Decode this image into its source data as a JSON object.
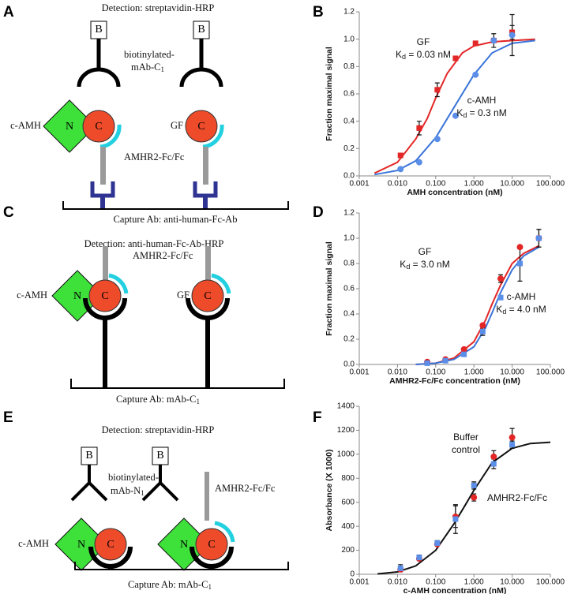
{
  "panel_labels": [
    "A",
    "B",
    "C",
    "D",
    "E",
    "F"
  ],
  "diagrams": [
    {
      "title": "Detection: streptavidin-HRP",
      "tags": [
        "B",
        "B"
      ],
      "detection_ab": [
        "biotinylated-",
        "mAb-C",
        "1"
      ],
      "ligands": [
        {
          "label": "c-AMH",
          "domains": [
            "N",
            "C"
          ]
        },
        {
          "label": "GF",
          "domains": [
            "C"
          ]
        }
      ],
      "receptor": "AMHR2-Fc/Fc",
      "capture": [
        "Capture Ab: anti-human-Fc-Ab"
      ]
    },
    {
      "title": "Detection: anti-human-Fc-Ab-HRP",
      "ligands": [
        {
          "label": "c-AMH",
          "domains": [
            "N",
            "C"
          ]
        },
        {
          "label": "GF",
          "domains": [
            "C"
          ]
        }
      ],
      "receptor": "AMHR2-Fc/Fc",
      "capture": [
        "Capture Ab: mAb-C",
        "1"
      ]
    },
    {
      "title": "Detection: streptavidin-HRP",
      "tags": [
        "B",
        "B"
      ],
      "detection_ab": [
        "biotinylated-",
        "mAb-N",
        "1"
      ],
      "ligands": [
        {
          "label": "c-AMH",
          "domains": [
            "N",
            "C"
          ]
        },
        {
          "domains": [
            "N",
            "C"
          ]
        }
      ],
      "receptor": "AMHR2-Fc/Fc",
      "capture": [
        "Capture Ab: mAb-C",
        "1"
      ]
    }
  ],
  "chart_data": [
    {
      "type": "scatter",
      "xlabel": "AMH concentration (nM)",
      "ylabel": "Fraction maximal signal",
      "xscale": "log",
      "xlim": [
        0.001,
        100
      ],
      "xticks": [
        {
          "value": 0.001,
          "label": "0.001"
        },
        {
          "value": 0.01,
          "label": "0.010"
        },
        {
          "value": 0.1,
          "label": "0.100"
        },
        {
          "value": 1,
          "label": "1.000"
        },
        {
          "value": 10,
          "label": "10.000"
        },
        {
          "value": 100,
          "label": "100.000"
        }
      ],
      "ylim": [
        0,
        1.2
      ],
      "yticks": [
        {
          "value": 0,
          "label": "0.0"
        },
        0.2,
        0.4,
        0.6,
        0.8,
        {
          "value": 1,
          "label": "1.0"
        },
        1.2
      ],
      "fits": [
        {
          "color": "#e32626",
          "x": [
            0.0025,
            0.01,
            0.03,
            0.06,
            0.1,
            0.2,
            0.5,
            1,
            3,
            10,
            40
          ],
          "values": [
            0.02,
            0.1,
            0.27,
            0.42,
            0.57,
            0.75,
            0.9,
            0.95,
            0.98,
            0.99,
            1.0
          ]
        },
        {
          "color": "#3a74d8",
          "x": [
            0.0025,
            0.01,
            0.03,
            0.1,
            0.3,
            1,
            3,
            10,
            40
          ],
          "values": [
            0.01,
            0.04,
            0.11,
            0.28,
            0.5,
            0.74,
            0.9,
            0.97,
            0.99
          ]
        }
      ],
      "series": [
        {
          "color": "#e32626",
          "marker": "square",
          "x": [
            0.012,
            0.037,
            0.11,
            0.33,
            1.1,
            3.3,
            10
          ],
          "values": [
            0.15,
            0.35,
            0.63,
            0.86,
            0.97,
            0.99,
            1.05
          ],
          "errors": [
            null,
            0.05,
            0.05,
            null,
            null,
            null,
            0.05
          ]
        },
        {
          "color": "#5a8ee8",
          "marker": "circle",
          "x": [
            0.012,
            0.037,
            0.11,
            0.33,
            1.1,
            3.3,
            10
          ],
          "values": [
            0.05,
            0.1,
            0.27,
            0.44,
            0.74,
            0.99,
            1.03
          ],
          "errors": [
            null,
            null,
            null,
            null,
            null,
            0.05,
            0.15
          ]
        }
      ],
      "annotations": [
        {
          "lines": [
            "GF"
          ],
          "kd": [
            "K",
            "d",
            " = 0.03 nM"
          ]
        },
        {
          "lines": [
            "c-AMH"
          ],
          "kd": [
            "K",
            "d",
            " = 0.3 nM"
          ]
        }
      ]
    },
    {
      "type": "scatter",
      "xlabel": "AMHR2-Fc/Fc concentration (nM)",
      "ylabel": "Fraction maximal signal",
      "xscale": "log",
      "xlim": [
        0.001,
        100
      ],
      "xticks": [
        {
          "value": 0.001,
          "label": "0.001"
        },
        {
          "value": 0.01,
          "label": "0.010"
        },
        {
          "value": 0.1,
          "label": "0.100"
        },
        {
          "value": 1,
          "label": "1.000"
        },
        {
          "value": 10,
          "label": "10.000"
        },
        {
          "value": 100,
          "label": "100.000"
        }
      ],
      "ylim": [
        0,
        1.2
      ],
      "yticks": [
        {
          "value": 0,
          "label": "0.0"
        },
        0.2,
        0.4,
        0.6,
        0.8,
        {
          "value": 1,
          "label": "1.0"
        },
        1.2
      ],
      "fits": [
        {
          "color": "#e32626",
          "x": [
            0.03,
            0.1,
            0.3,
            1,
            2,
            3,
            5,
            10,
            20,
            50
          ],
          "values": [
            0.0,
            0.01,
            0.05,
            0.18,
            0.35,
            0.48,
            0.63,
            0.8,
            0.88,
            0.94
          ]
        },
        {
          "color": "#3a74d8",
          "x": [
            0.03,
            0.1,
            0.3,
            1,
            2,
            3,
            5,
            10,
            20,
            50
          ],
          "values": [
            0.0,
            0.01,
            0.04,
            0.14,
            0.29,
            0.41,
            0.57,
            0.75,
            0.86,
            0.93
          ]
        }
      ],
      "series": [
        {
          "color": "#e32626",
          "marker": "circle",
          "x": [
            0.06,
            0.18,
            0.55,
            1.7,
            5,
            16,
            50
          ],
          "values": [
            0.02,
            0.04,
            0.12,
            0.31,
            0.68,
            0.93,
            1.0
          ],
          "errors": [
            null,
            null,
            null,
            null,
            0.03,
            null,
            0.07
          ]
        },
        {
          "color": "#5a8ee8",
          "marker": "square",
          "x": [
            0.06,
            0.18,
            0.55,
            1.7,
            5,
            16,
            50
          ],
          "values": [
            0.01,
            0.03,
            0.08,
            0.26,
            0.53,
            0.8,
            1.0
          ],
          "errors": [
            null,
            null,
            null,
            0.03,
            null,
            0.14,
            0.07
          ]
        }
      ],
      "annotations": [
        {
          "lines": [
            "GF"
          ],
          "kd": [
            "K",
            "d",
            " = 3.0 nM"
          ]
        },
        {
          "lines": [
            "c-AMH"
          ],
          "kd": [
            "K",
            "d",
            " = 4.0 nM"
          ]
        }
      ]
    },
    {
      "type": "scatter",
      "xlabel": "c-AMH concentration (nM)",
      "ylabel": "Absorbance (X 1000)",
      "xscale": "log",
      "xlim": [
        0.001,
        100
      ],
      "xticks": [
        {
          "value": 0.001,
          "label": "0.001"
        },
        {
          "value": 0.01,
          "label": "0.010"
        },
        {
          "value": 0.1,
          "label": "0.100"
        },
        {
          "value": 1,
          "label": "1.000"
        },
        {
          "value": 10,
          "label": "10.000"
        },
        {
          "value": 100,
          "label": "100.000"
        }
      ],
      "ylim": [
        0,
        1400
      ],
      "yticks": [
        0,
        200,
        400,
        600,
        800,
        1000,
        1200,
        1400
      ],
      "fits": [
        {
          "color": "#111111",
          "x": [
            0.003,
            0.01,
            0.03,
            0.1,
            0.3,
            0.6,
            1,
            3,
            10,
            30,
            100
          ],
          "values": [
            3,
            20,
            70,
            200,
            420,
            580,
            700,
            930,
            1050,
            1090,
            1100
          ]
        }
      ],
      "series": [
        {
          "color": "#e32626",
          "marker": "circle",
          "x": [
            0.012,
            0.037,
            0.11,
            0.33,
            1.0,
            3.3,
            10
          ],
          "values": [
            40,
            130,
            250,
            480,
            640,
            980,
            1140
          ],
          "errors": [
            null,
            null,
            null,
            90,
            30,
            50,
            75
          ]
        },
        {
          "color": "#5a8ee8",
          "marker": "square",
          "x": [
            0.012,
            0.037,
            0.11,
            0.33,
            1.0,
            3.3,
            10
          ],
          "values": [
            50,
            140,
            260,
            460,
            740,
            920,
            1080
          ],
          "errors": [
            30,
            20,
            20,
            120,
            30,
            40,
            30
          ]
        }
      ],
      "annotations": [
        {
          "lines": [
            "Buffer",
            "control"
          ]
        },
        {
          "lines": [
            "AMHR2-Fc/Fc"
          ]
        }
      ]
    }
  ]
}
